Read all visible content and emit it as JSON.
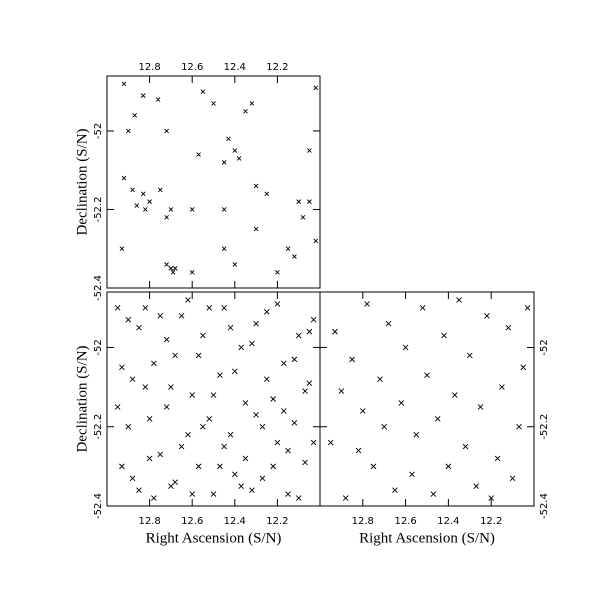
{
  "chart_data": [
    {
      "type": "scatter",
      "ylabel": "Declination (S/N)",
      "xlim": [
        13.0,
        12.0
      ],
      "ylim": [
        -52.4,
        -51.86
      ],
      "xticks": [
        12.8,
        12.6,
        12.4,
        12.2
      ],
      "yticks": [
        -52,
        -52.2,
        -52.4
      ],
      "series": [
        {
          "color": "#000000",
          "x": [
            12.92,
            12.83,
            12.76,
            12.55,
            12.5,
            12.35,
            12.32,
            12.02,
            12.9,
            12.87,
            12.72,
            12.43,
            12.4,
            12.38,
            12.45,
            12.57,
            12.05,
            12.92,
            12.88,
            12.83,
            12.8,
            12.86,
            12.82,
            12.75,
            12.72,
            12.7,
            12.6,
            12.3,
            12.25,
            12.1,
            12.08,
            12.05,
            12.93,
            12.72,
            12.7,
            12.69,
            12.68,
            12.6,
            12.45,
            12.4,
            12.2,
            12.12,
            12.02,
            12.3,
            12.45,
            12.15
          ],
          "y": [
            -51.88,
            -51.91,
            -51.92,
            -51.9,
            -51.93,
            -51.95,
            -51.93,
            -51.89,
            -52.0,
            -51.96,
            -52.0,
            -52.02,
            -52.05,
            -52.07,
            -52.08,
            -52.06,
            -52.05,
            -52.12,
            -52.15,
            -52.16,
            -52.18,
            -52.19,
            -52.2,
            -52.15,
            -52.22,
            -52.2,
            -52.2,
            -52.14,
            -52.16,
            -52.18,
            -52.22,
            -52.18,
            -52.3,
            -52.34,
            -52.35,
            -52.36,
            -52.35,
            -52.36,
            -52.3,
            -52.34,
            -52.36,
            -52.32,
            -52.28,
            -52.25,
            -52.2,
            -52.3
          ]
        }
      ]
    },
    {
      "type": "scatter",
      "xlabel": "Right Ascension (S/N)",
      "ylabel": "Declination (S/N)",
      "xlim": [
        13.0,
        12.0
      ],
      "ylim": [
        -52.4,
        -51.86
      ],
      "xticks": [
        12.8,
        12.6,
        12.4,
        12.2
      ],
      "yticks": [
        -52,
        -52.2,
        -52.4
      ],
      "series": [
        {
          "color": "#000000",
          "x": [
            12.95,
            12.93,
            12.9,
            12.88,
            12.85,
            12.82,
            12.8,
            12.78,
            12.75,
            12.72,
            12.7,
            12.68,
            12.65,
            12.62,
            12.6,
            12.57,
            12.55,
            12.52,
            12.5,
            12.47,
            12.45,
            12.42,
            12.4,
            12.37,
            12.35,
            12.32,
            12.3,
            12.27,
            12.25,
            12.22,
            12.2,
            12.17,
            12.15,
            12.12,
            12.1,
            12.07,
            12.05,
            12.03,
            12.95,
            12.93,
            12.9,
            12.88,
            12.85,
            12.82,
            12.8,
            12.78,
            12.75,
            12.72,
            12.7,
            12.68,
            12.65,
            12.62,
            12.6,
            12.57,
            12.55,
            12.52,
            12.5,
            12.47,
            12.45,
            12.42,
            12.4,
            12.37,
            12.35,
            12.32,
            12.3,
            12.27,
            12.25,
            12.22,
            12.2,
            12.17,
            12.15,
            12.12,
            12.1,
            12.07,
            12.05,
            12.03
          ],
          "y": [
            -51.9,
            -52.05,
            -52.2,
            -52.33,
            -51.95,
            -52.1,
            -52.28,
            -52.38,
            -51.92,
            -52.15,
            -52.35,
            -52.02,
            -52.25,
            -51.88,
            -52.12,
            -52.3,
            -51.97,
            -52.18,
            -52.37,
            -52.07,
            -51.9,
            -52.22,
            -52.32,
            -52.0,
            -52.14,
            -52.36,
            -51.94,
            -52.2,
            -52.08,
            -52.3,
            -51.89,
            -52.16,
            -52.26,
            -52.03,
            -52.38,
            -52.11,
            -51.96,
            -52.24,
            -52.15,
            -52.3,
            -51.93,
            -52.08,
            -52.36,
            -51.9,
            -52.18,
            -52.04,
            -52.27,
            -51.98,
            -52.1,
            -52.34,
            -51.92,
            -52.22,
            -52.37,
            -52.02,
            -52.2,
            -51.9,
            -52.12,
            -52.3,
            -52.25,
            -51.95,
            -52.06,
            -52.35,
            -52.28,
            -51.99,
            -52.17,
            -52.33,
            -51.91,
            -52.13,
            -52.24,
            -52.04,
            -52.37,
            -52.19,
            -51.97,
            -52.29,
            -52.09,
            -51.93
          ]
        }
      ]
    },
    {
      "type": "scatter",
      "xlabel": "Right Ascension (S/N)",
      "xlim": [
        13.0,
        12.0
      ],
      "ylim": [
        -52.4,
        -51.86
      ],
      "xticks": [
        12.8,
        12.6,
        12.4,
        12.2
      ],
      "yticks": [
        -52,
        -52.2,
        -52.4
      ],
      "series": [
        {
          "color": "#000000",
          "x": [
            12.95,
            12.93,
            12.9,
            12.88,
            12.85,
            12.82,
            12.8,
            12.78,
            12.75,
            12.72,
            12.7,
            12.68,
            12.65,
            12.62,
            12.6,
            12.57,
            12.55,
            12.52,
            12.5,
            12.47,
            12.45,
            12.42,
            12.4,
            12.37,
            12.35,
            12.32,
            12.3,
            12.27,
            12.25,
            12.22,
            12.2,
            12.17,
            12.15,
            12.12,
            12.1,
            12.07,
            12.05,
            12.03
          ],
          "y": [
            -52.24,
            -51.96,
            -52.11,
            -52.38,
            -52.03,
            -52.26,
            -52.16,
            -51.89,
            -52.3,
            -52.08,
            -52.2,
            -51.94,
            -52.36,
            -52.14,
            -52.0,
            -52.32,
            -52.22,
            -51.9,
            -52.07,
            -52.37,
            -52.18,
            -51.97,
            -52.3,
            -52.12,
            -51.88,
            -52.25,
            -52.02,
            -52.35,
            -52.15,
            -51.92,
            -52.38,
            -52.28,
            -52.1,
            -51.95,
            -52.33,
            -52.2,
            -52.05,
            -51.9
          ]
        }
      ]
    }
  ]
}
